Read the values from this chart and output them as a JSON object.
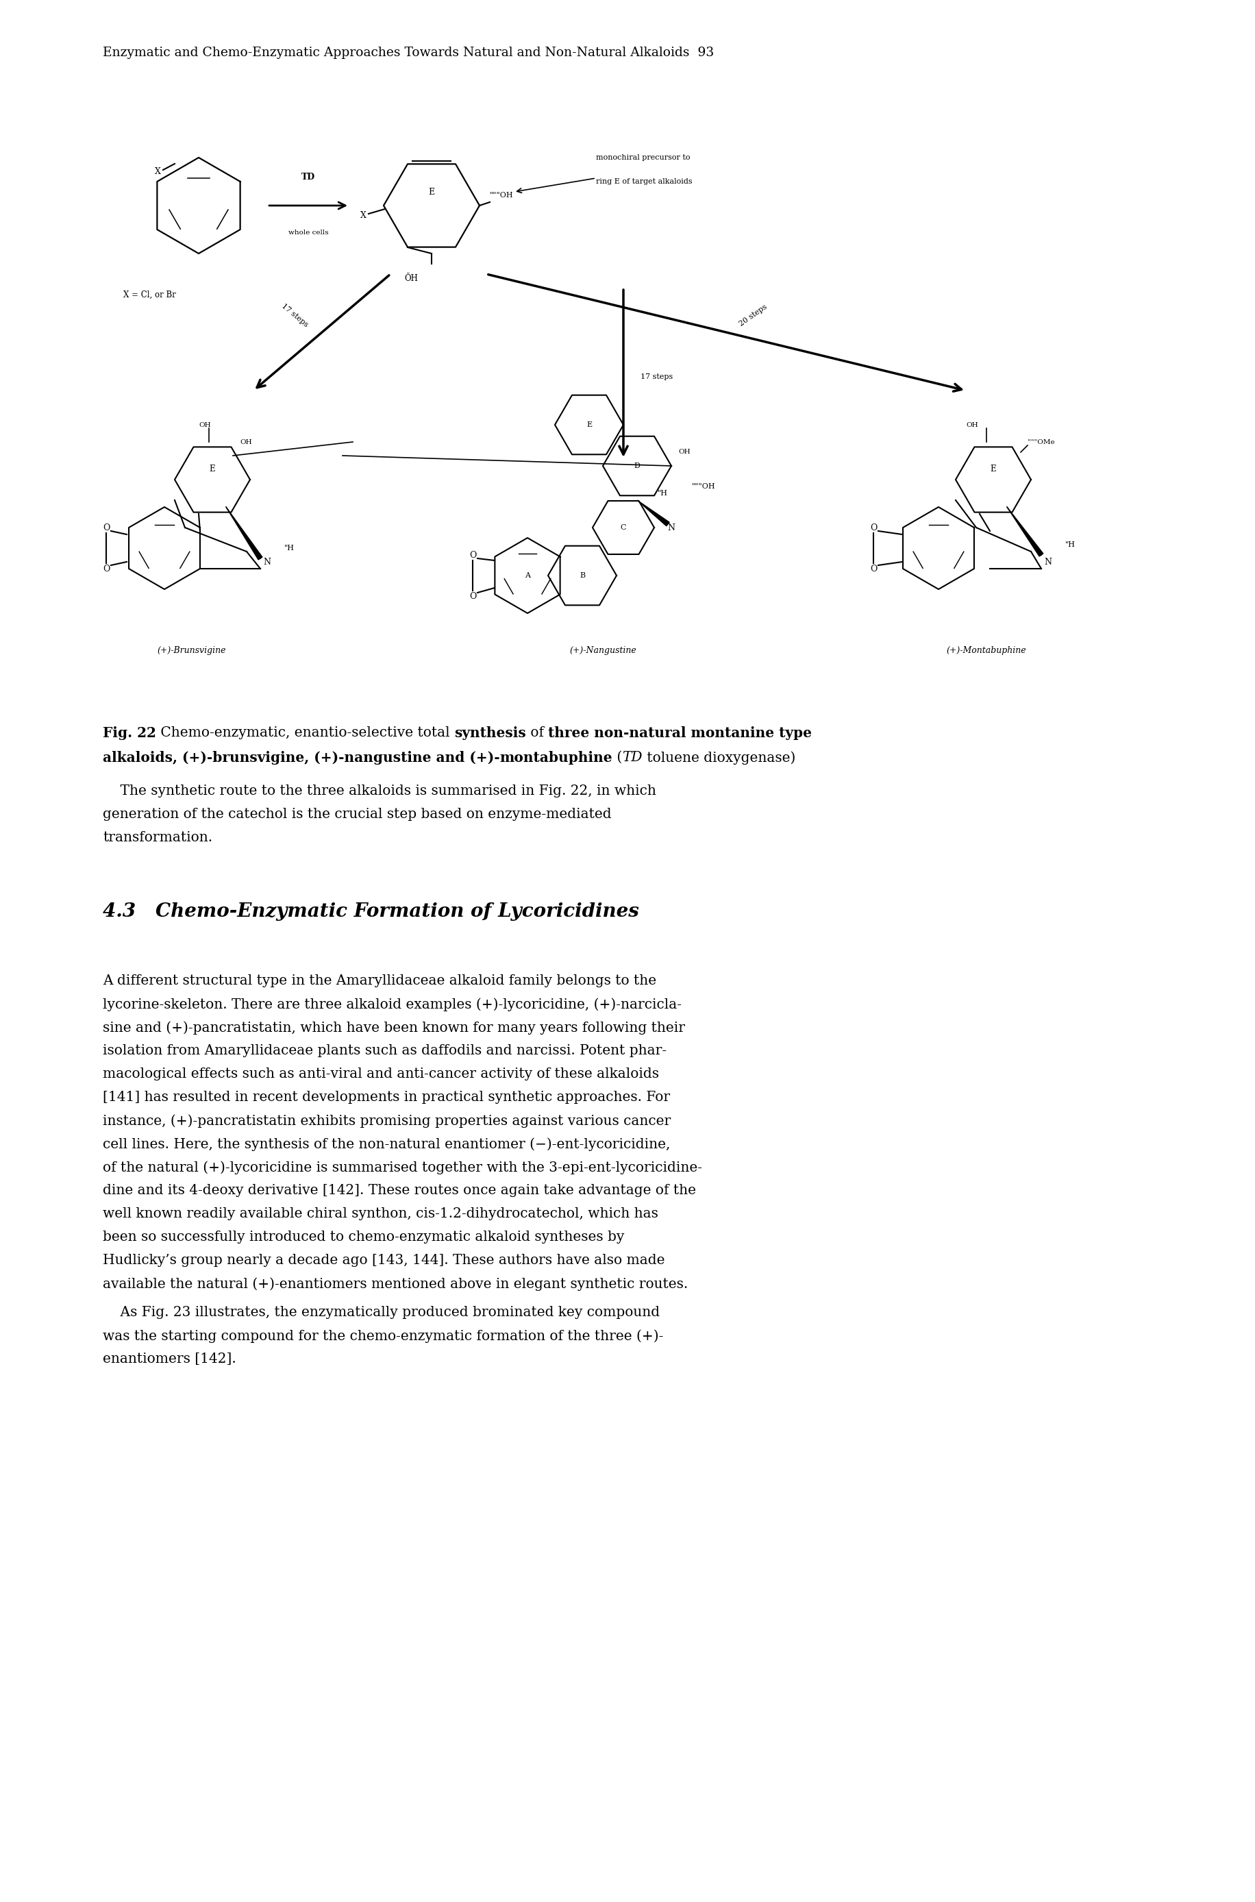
{
  "background_color": "#ffffff",
  "header": "Enzymatic and Chemo-Enzymatic Approaches Towards Natural and Non-Natural Alkaloids  93",
  "caption_bold1": "Fig. 22",
  "caption_normal1": " Chemo-enzymatic, enantio-selective total ",
  "caption_bold2": "synthesis",
  "caption_normal2": " of ",
  "caption_bold3": "three non-natural montanine type",
  "caption_line2_bold": "alkaloids, (+)-brunsvigine, (+)-nangustine and (+)-",
  "caption_line2_bold2": "montabuphine",
  "caption_line2_normal": " (",
  "caption_line2_italic": "TD",
  "caption_line2_end": " toluene dioxygenase)",
  "para1": [
    "    The synthetic route to the three alkaloids is summarised in Fig. 22, in which",
    "generation of the catechol is the crucial step based on enzyme-mediated",
    "transformation."
  ],
  "section": "4.3   Chemo-Enzymatic Formation of Lycoricidines",
  "para2": [
    "A different structural type in the Amaryllidaceae alkaloid family belongs to the",
    "lycorine-skeleton. There are three alkaloid examples (+)-lycoricidine, (+)-narcicla-",
    "sine and (+)-pancratistatin, which have been known for many years following their",
    "isolation from Amaryllidaceae plants such as daffodils and narcissi. Potent phar-",
    "macological effects such as anti-viral and anti-cancer activity of these alkaloids",
    "[141] has resulted in recent developments in practical synthetic approaches. For",
    "instance, (+)-pancratistatin exhibits promising properties against various cancer",
    "cell lines. Here, the synthesis of the non-natural enantiomer (−)-ent-lycoricidine,",
    "of the natural (+)-lycoricidine is summarised together with the 3-epi-ent-lycoricidine-",
    "dine and its 4-deoxy derivative [142]. These routes once again take advantage of the",
    "well known readily available chiral synthon, cis-1.2-dihydrocatechol, which has",
    "been so successfully introduced to chemo-enzymatic alkaloid syntheses by",
    "Hudlicky’s group nearly a decade ago [143, 144]. These authors have also made",
    "available the natural (+)-enantiomers mentioned above in elegant synthetic routes."
  ],
  "para3": [
    "    As Fig. 23 illustrates, the enzymatically produced brominated key compound",
    "was the starting compound for the chemo-enzymatic formation of the three (+)-",
    "enantiomers [142]."
  ]
}
